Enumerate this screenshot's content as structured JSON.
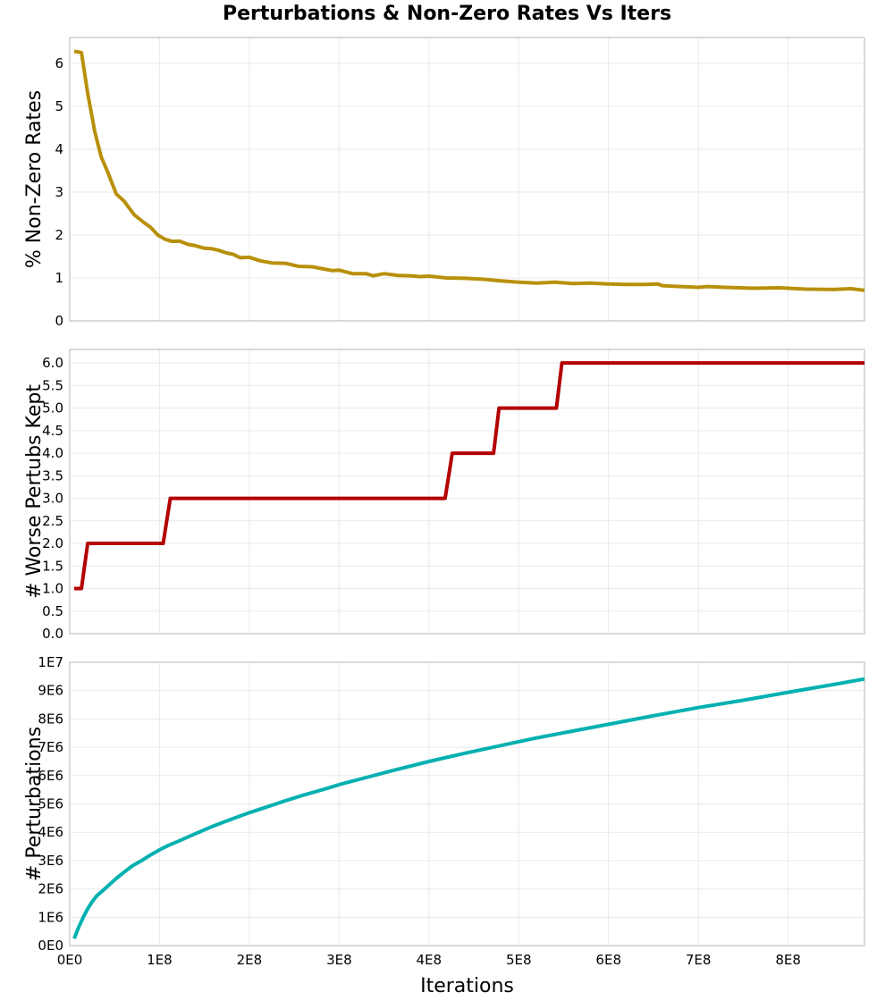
{
  "title": "Perturbations & Non-Zero Rates Vs Iters",
  "chart_data": [
    {
      "type": "line",
      "ylabel": "% Non-Zero Rates",
      "xlim": [
        0,
        885000000
      ],
      "ylim": [
        0,
        6.6
      ],
      "yticks": [
        0,
        1,
        2,
        3,
        4,
        5,
        6
      ],
      "ytick_labels": [
        "0",
        "1",
        "2",
        "3",
        "4",
        "5",
        "6"
      ],
      "grid": true,
      "color": "#b8900a",
      "x": [
        5000000,
        13000000,
        20000000,
        28000000,
        35000000,
        42000000,
        52000000,
        60000000,
        72000000,
        82000000,
        90000000,
        98000000,
        106000000,
        114000000,
        122000000,
        132000000,
        140000000,
        150000000,
        158000000,
        165000000,
        175000000,
        182000000,
        190000000,
        200000000,
        212000000,
        225000000,
        240000000,
        255000000,
        270000000,
        285000000,
        293000000,
        300000000,
        315000000,
        325000000,
        330000000,
        338000000,
        350000000,
        365000000,
        380000000,
        390000000,
        400000000,
        420000000,
        440000000,
        460000000,
        480000000,
        500000000,
        520000000,
        540000000,
        560000000,
        580000000,
        600000000,
        620000000,
        640000000,
        655000000,
        660000000,
        680000000,
        700000000,
        710000000,
        730000000,
        760000000,
        790000000,
        820000000,
        850000000,
        870000000,
        885000000
      ],
      "y": [
        6.28,
        6.25,
        5.3,
        4.4,
        3.82,
        3.48,
        2.95,
        2.8,
        2.47,
        2.3,
        2.18,
        2.0,
        1.9,
        1.85,
        1.86,
        1.78,
        1.75,
        1.69,
        1.68,
        1.65,
        1.58,
        1.55,
        1.47,
        1.48,
        1.4,
        1.35,
        1.34,
        1.27,
        1.26,
        1.2,
        1.17,
        1.18,
        1.1,
        1.1,
        1.1,
        1.05,
        1.1,
        1.06,
        1.05,
        1.03,
        1.04,
        1.0,
        0.99,
        0.97,
        0.93,
        0.9,
        0.88,
        0.9,
        0.87,
        0.88,
        0.86,
        0.85,
        0.85,
        0.86,
        0.82,
        0.8,
        0.78,
        0.8,
        0.78,
        0.76,
        0.77,
        0.74,
        0.73,
        0.75,
        0.71
      ]
    },
    {
      "type": "line",
      "ylabel": "# Worse Pertubs Kept",
      "xlim": [
        0,
        885000000
      ],
      "ylim": [
        0,
        6.3
      ],
      "yticks": [
        0,
        0.5,
        1,
        1.5,
        2,
        2.5,
        3,
        3.5,
        4,
        4.5,
        5,
        5.5,
        6
      ],
      "ytick_labels": [
        "0.0",
        "0.5",
        "1.0",
        "1.5",
        "2.0",
        "2.5",
        "3.0",
        "3.5",
        "4.0",
        "4.5",
        "5.0",
        "5.5",
        "6.0"
      ],
      "grid": true,
      "color": "#b30000",
      "x": [
        5000000,
        13000000,
        20000000,
        104000000,
        112000000,
        418000000,
        426000000,
        472000000,
        478000000,
        542000000,
        548000000,
        885000000
      ],
      "y": [
        1,
        1,
        2,
        2,
        3,
        3,
        4,
        4,
        5,
        5,
        6,
        6
      ]
    },
    {
      "type": "line",
      "ylabel": "# Perturbations",
      "xlabel": "Iterations",
      "xlim": [
        0,
        885000000
      ],
      "ylim": [
        0,
        10000000
      ],
      "yticks": [
        0,
        1000000,
        2000000,
        3000000,
        4000000,
        5000000,
        6000000,
        7000000,
        8000000,
        9000000,
        10000000
      ],
      "ytick_labels": [
        "0E0",
        "1E6",
        "2E6",
        "3E6",
        "4E6",
        "5E6",
        "6E6",
        "7E6",
        "8E6",
        "9E6",
        "1E7"
      ],
      "xticks": [
        0,
        100000000,
        200000000,
        300000000,
        400000000,
        500000000,
        600000000,
        700000000,
        800000000
      ],
      "xtick_labels": [
        "0E0",
        "1E8",
        "2E8",
        "3E8",
        "4E8",
        "5E8",
        "6E8",
        "7E8",
        "8E8"
      ],
      "grid": true,
      "color": "#00b0b0",
      "x": [
        5000000,
        10000000,
        15000000,
        20000000,
        25000000,
        30000000,
        40000000,
        50000000,
        60000000,
        70000000,
        80000000,
        90000000,
        100000000,
        110000000,
        120000000,
        140000000,
        160000000,
        180000000,
        200000000,
        220000000,
        240000000,
        260000000,
        280000000,
        300000000,
        330000000,
        360000000,
        400000000,
        440000000,
        480000000,
        520000000,
        560000000,
        600000000,
        650000000,
        700000000,
        750000000,
        800000000,
        850000000,
        885000000
      ],
      "y": [
        250000,
        650000,
        1000000,
        1300000,
        1550000,
        1750000,
        2030000,
        2320000,
        2580000,
        2820000,
        3000000,
        3200000,
        3380000,
        3540000,
        3670000,
        3950000,
        4220000,
        4460000,
        4690000,
        4900000,
        5110000,
        5310000,
        5490000,
        5680000,
        5930000,
        6180000,
        6500000,
        6790000,
        7060000,
        7330000,
        7570000,
        7810000,
        8110000,
        8400000,
        8660000,
        8940000,
        9210000,
        9410000
      ]
    }
  ]
}
